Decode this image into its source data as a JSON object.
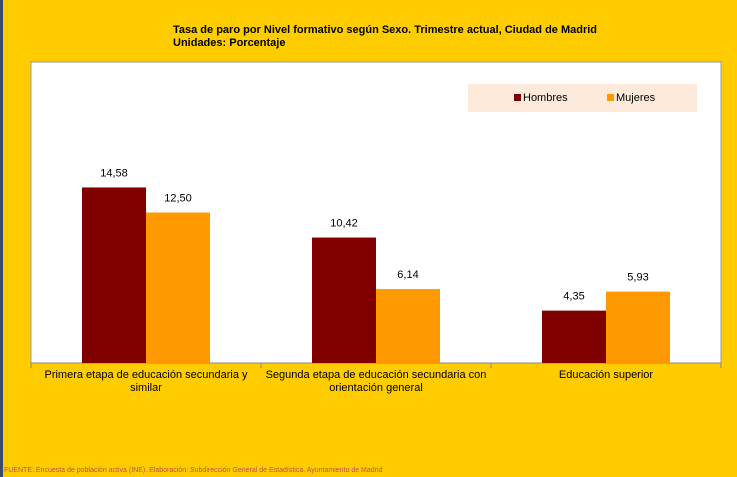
{
  "chart_data": {
    "type": "bar",
    "title": "Tasa de paro por Nivel formativo según Sexo. Trimestre actual, Ciudad de Madrid",
    "subtitle": "Unidades: Porcentaje",
    "source": "FUENTE: Encuesta de población activa (INE). Elaboración: Subdirección General de Estadística. Ayuntamiento de Madrid",
    "categories": [
      "Primera etapa de educación secundaria y similar",
      "Segunda etapa de educación secundaria con orientación general",
      "Educación superior"
    ],
    "series": [
      {
        "name": "Hombres",
        "color": "#800000",
        "values": [
          14.58,
          10.42,
          4.35
        ],
        "value_labels": [
          "14,58",
          "10,42",
          "4,35"
        ]
      },
      {
        "name": "Mujeres",
        "color": "#FF9900",
        "values": [
          12.5,
          6.14,
          5.93
        ],
        "value_labels": [
          "12,50",
          "6,14",
          "5,93"
        ]
      }
    ],
    "ylim": [
      0,
      25
    ],
    "legend": "top-right"
  }
}
